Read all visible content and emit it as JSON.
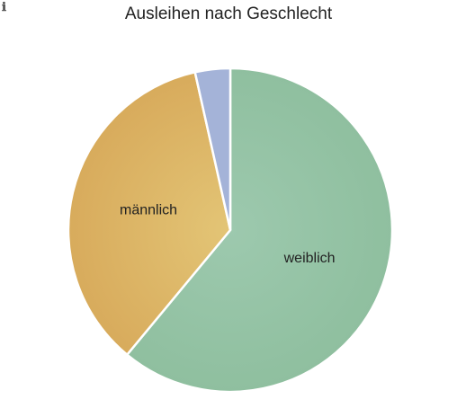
{
  "info_icon": "info-icon",
  "info_glyph": "ℹ",
  "chart_data": {
    "type": "pie",
    "title": "Ausleihen nach Geschlecht",
    "slices": [
      {
        "label": "weiblich",
        "value": 61.0,
        "color": "#8fbf9f",
        "highlight": "#9dc9ae",
        "show_label": true
      },
      {
        "label": "männlich",
        "value": 35.5,
        "color": "#d8ab5c",
        "highlight": "#e3c576",
        "show_label": true
      },
      {
        "label": "",
        "value": 3.5,
        "color": "#a4b3d8",
        "highlight": "#a4b3d8",
        "show_label": false
      }
    ],
    "start_angle_deg": 0,
    "direction": "clockwise",
    "legend": "none"
  }
}
